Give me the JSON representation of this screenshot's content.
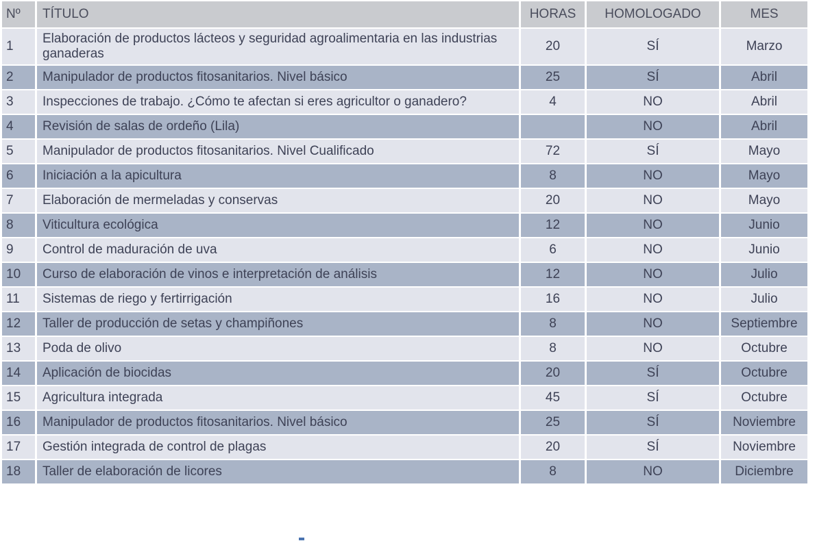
{
  "headers": {
    "num": "Nº",
    "title": "TÍTULO",
    "hours": "HORAS",
    "homologated": "HOMOLOGADO",
    "month": "MES"
  },
  "rows": [
    {
      "num": "1",
      "title": "Elaboración de productos lácteos y seguridad agroalimentaria en las industrias ganaderas",
      "hours": "20",
      "homologated": "SÍ",
      "month": "Marzo"
    },
    {
      "num": "2",
      "title": "Manipulador de productos fitosanitarios. Nivel básico",
      "hours": "25",
      "homologated": "SÍ",
      "month": "Abril"
    },
    {
      "num": "3",
      "title": "Inspecciones de trabajo. ¿Cómo te afectan si eres agricultor o ganadero?",
      "hours": "4",
      "homologated": "NO",
      "month": "Abril"
    },
    {
      "num": "4",
      "title": "Revisión de salas de ordeño (Lila)",
      "hours": "",
      "homologated": "NO",
      "month": "Abril"
    },
    {
      "num": "5",
      "title": "Manipulador de productos fitosanitarios. Nivel Cualificado",
      "hours": "72",
      "homologated": "SÍ",
      "month": "Mayo"
    },
    {
      "num": "6",
      "title": "Iniciación a la apicultura",
      "hours": "8",
      "homologated": "NO",
      "month": "Mayo"
    },
    {
      "num": "7",
      "title": "Elaboración de mermeladas y conservas",
      "hours": "20",
      "homologated": "NO",
      "month": "Mayo"
    },
    {
      "num": "8",
      "title": "Viticultura ecológica",
      "hours": "12",
      "homologated": "NO",
      "month": "Junio"
    },
    {
      "num": "9",
      "title": "Control de maduración de uva",
      "hours": "6",
      "homologated": "NO",
      "month": "Junio"
    },
    {
      "num": "10",
      "title": "Curso de elaboración de vinos e interpretación de análisis",
      "hours": "12",
      "homologated": "NO",
      "month": "Julio"
    },
    {
      "num": "11",
      "title": "Sistemas de riego y fertirrigación",
      "hours": "16",
      "homologated": "NO",
      "month": "Julio"
    },
    {
      "num": "12",
      "title": "Taller de producción de setas y champiñones",
      "hours": "8",
      "homologated": "NO",
      "month": "Septiembre"
    },
    {
      "num": "13",
      "title": "Poda de olivo",
      "hours": "8",
      "homologated": "NO",
      "month": "Octubre"
    },
    {
      "num": "14",
      "title": "Aplicación de biocidas",
      "hours": "20",
      "homologated": "SÍ",
      "month": "Octubre"
    },
    {
      "num": "15",
      "title": "Agricultura integrada",
      "hours": "45",
      "homologated": "SÍ",
      "month": "Octubre"
    },
    {
      "num": "16",
      "title": "Manipulador de productos fitosanitarios. Nivel básico",
      "hours": "25",
      "homologated": "SÍ",
      "month": "Noviembre"
    },
    {
      "num": "17",
      "title": "Gestión integrada de control de plagas",
      "hours": "20",
      "homologated": "SÍ",
      "month": "Noviembre"
    },
    {
      "num": "18",
      "title": "Taller de elaboración de licores",
      "hours": "8",
      "homologated": "NO",
      "month": "Diciembre"
    }
  ]
}
